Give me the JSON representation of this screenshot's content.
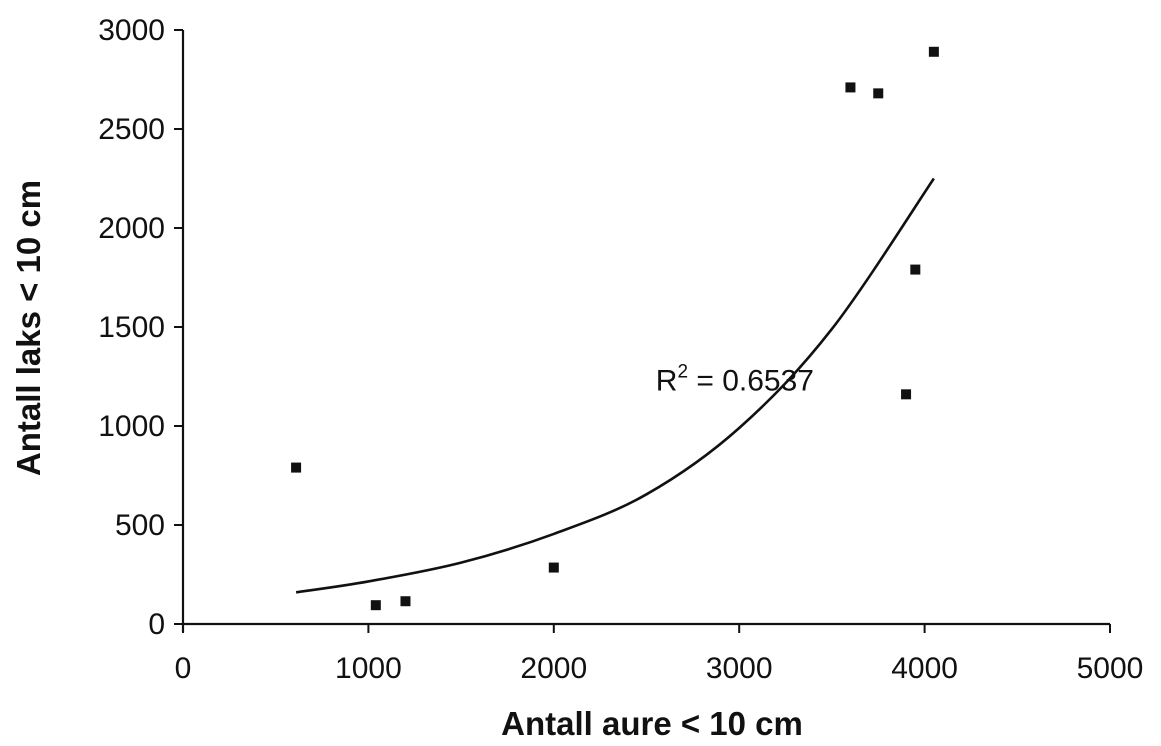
{
  "chart_data": {
    "type": "scatter",
    "xlabel": "Antall aure < 10 cm",
    "ylabel": "Antall laks < 10 cm",
    "xlim": [
      0,
      5000
    ],
    "ylim": [
      0,
      3000
    ],
    "xticks": [
      0,
      1000,
      2000,
      3000,
      4000,
      5000
    ],
    "yticks": [
      0,
      500,
      1000,
      1500,
      2000,
      2500,
      3000
    ],
    "grid": false,
    "legend": "none",
    "points": [
      {
        "x": 610,
        "y": 790
      },
      {
        "x": 1040,
        "y": 95
      },
      {
        "x": 1200,
        "y": 115
      },
      {
        "x": 2000,
        "y": 285
      },
      {
        "x": 3600,
        "y": 2710
      },
      {
        "x": 3750,
        "y": 2680
      },
      {
        "x": 3900,
        "y": 1160
      },
      {
        "x": 3950,
        "y": 1790
      },
      {
        "x": 4050,
        "y": 2890
      }
    ],
    "trendline": {
      "type": "exponential",
      "x_range": [
        610,
        4050
      ],
      "points": [
        {
          "x": 610,
          "y": 160
        },
        {
          "x": 1000,
          "y": 215
        },
        {
          "x": 1500,
          "y": 310
        },
        {
          "x": 2000,
          "y": 455
        },
        {
          "x": 2500,
          "y": 655
        },
        {
          "x": 3000,
          "y": 990
        },
        {
          "x": 3500,
          "y": 1490
        },
        {
          "x": 4050,
          "y": 2250
        }
      ]
    },
    "annotation": {
      "base": "R",
      "sup": "2",
      "rest": " = 0.6537",
      "x": 2550,
      "y": 1180
    }
  }
}
